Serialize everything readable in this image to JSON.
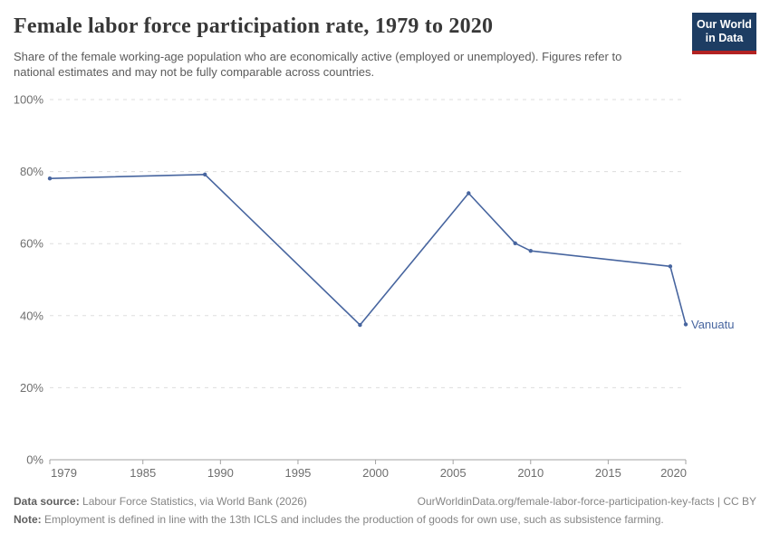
{
  "header": {
    "title": "Female labor force participation rate, 1979 to 2020",
    "subtitle": "Share of the female working-age population who are economically active (employed or unemployed). Figures refer to national estimates and may not be fully comparable across countries.",
    "logo": {
      "line1": "Our World",
      "line2": "in Data",
      "bg_color": "#1d3d63",
      "accent_color": "#b22222"
    }
  },
  "chart_data": {
    "type": "line",
    "title": "Female labor force participation rate, 1979 to 2020",
    "xlabel": "",
    "ylabel": "",
    "xlim": [
      1979,
      2020
    ],
    "ylim": [
      0,
      100
    ],
    "x_ticks": [
      "1979",
      "1985",
      "1990",
      "1995",
      "2000",
      "2005",
      "2010",
      "2015",
      "2020"
    ],
    "x_tick_values": [
      1979,
      1985,
      1990,
      1995,
      2000,
      2005,
      2010,
      2015,
      2020
    ],
    "y_ticks": [
      "0%",
      "20%",
      "40%",
      "60%",
      "80%",
      "100%"
    ],
    "y_tick_values": [
      0,
      20,
      40,
      60,
      80,
      100
    ],
    "grid": "horizontal-dashed",
    "legend_position": "end-of-line-label",
    "series": [
      {
        "name": "Vanuatu",
        "color": "#47659f",
        "points": [
          {
            "year": 1979,
            "value": 78.1
          },
          {
            "year": 1989,
            "value": 79.2
          },
          {
            "year": 1999,
            "value": 37.4
          },
          {
            "year": 2006,
            "value": 74.0
          },
          {
            "year": 2009,
            "value": 60.1
          },
          {
            "year": 2010,
            "value": 58.0
          },
          {
            "year": 2019,
            "value": 53.7
          },
          {
            "year": 2020,
            "value": 37.6
          }
        ]
      }
    ],
    "colors": {
      "gridline": "#dddddd",
      "axis": "#a3a3a3",
      "tick_label": "#6e6e6e"
    }
  },
  "footer": {
    "data_source_label": "Data source:",
    "data_source_text": " Labour Force Statistics, via World Bank (2026)",
    "link_text": "OurWorldinData.org/female-labor-force-participation-key-facts | CC BY",
    "note_label": "Note:",
    "note_text": " Employment is defined in line with the 13th ICLS and includes the production of goods for own use, such as subsistence farming."
  }
}
